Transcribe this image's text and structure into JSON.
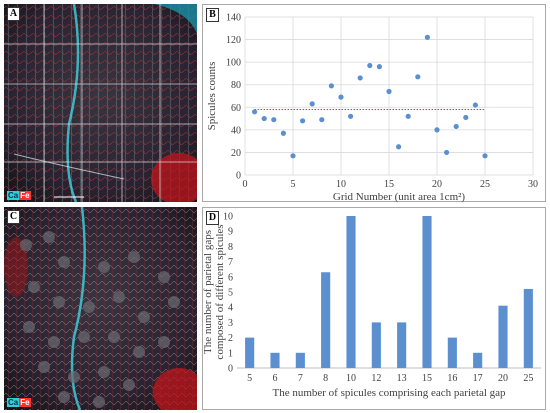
{
  "panels": {
    "a": {
      "letter": "A",
      "legend": [
        "Ca",
        "Fe"
      ]
    },
    "b": {
      "letter": "B"
    },
    "c": {
      "letter": "C",
      "legend": [
        "Ca",
        "Fe"
      ]
    },
    "d": {
      "letter": "D"
    }
  },
  "colors": {
    "series": "#5b8fd0",
    "trend": "#3a6fb5",
    "ca": "#2bd0dc",
    "fe": "#ff3030"
  },
  "chart_data": [
    {
      "type": "scatter",
      "xlabel": "Grid Number (unit area 1cm²)",
      "ylabel": "Spicules counts",
      "xlim": [
        0,
        30
      ],
      "ylim": [
        0,
        140
      ],
      "xticks": [
        0,
        5,
        10,
        15,
        20,
        25,
        30
      ],
      "yticks": [
        0,
        20,
        40,
        60,
        80,
        100,
        120,
        140
      ],
      "trendline": {
        "y": 58,
        "x_range": [
          1,
          25
        ],
        "style": "dotted"
      },
      "points": [
        {
          "x": 1,
          "y": 56
        },
        {
          "x": 2,
          "y": 50
        },
        {
          "x": 3,
          "y": 49
        },
        {
          "x": 4,
          "y": 37
        },
        {
          "x": 5,
          "y": 17
        },
        {
          "x": 6,
          "y": 48
        },
        {
          "x": 7,
          "y": 63
        },
        {
          "x": 8,
          "y": 49
        },
        {
          "x": 9,
          "y": 79
        },
        {
          "x": 10,
          "y": 69
        },
        {
          "x": 11,
          "y": 52
        },
        {
          "x": 12,
          "y": 86
        },
        {
          "x": 13,
          "y": 97
        },
        {
          "x": 14,
          "y": 96
        },
        {
          "x": 15,
          "y": 74
        },
        {
          "x": 16,
          "y": 25
        },
        {
          "x": 17,
          "y": 52
        },
        {
          "x": 18,
          "y": 87
        },
        {
          "x": 19,
          "y": 122
        },
        {
          "x": 20,
          "y": 40
        },
        {
          "x": 21,
          "y": 20
        },
        {
          "x": 22,
          "y": 43
        },
        {
          "x": 23,
          "y": 51
        },
        {
          "x": 24,
          "y": 62
        },
        {
          "x": 25,
          "y": 17
        }
      ]
    },
    {
      "type": "bar",
      "xlabel": "The number of spicules comprising each parietal gap",
      "ylabel_lines": [
        "The number of parietal gaps",
        "composed of different spicules"
      ],
      "ylim": [
        0,
        10
      ],
      "yticks": [
        0,
        1,
        2,
        3,
        4,
        5,
        6,
        7,
        8,
        9,
        10
      ],
      "categories": [
        "5",
        "6",
        "7",
        "8",
        "10",
        "12",
        "13",
        "15",
        "16",
        "17",
        "20",
        "25"
      ],
      "values": [
        2,
        1,
        1,
        6.3,
        10,
        3,
        3,
        10,
        2,
        1,
        4.1,
        5.2
      ]
    }
  ]
}
